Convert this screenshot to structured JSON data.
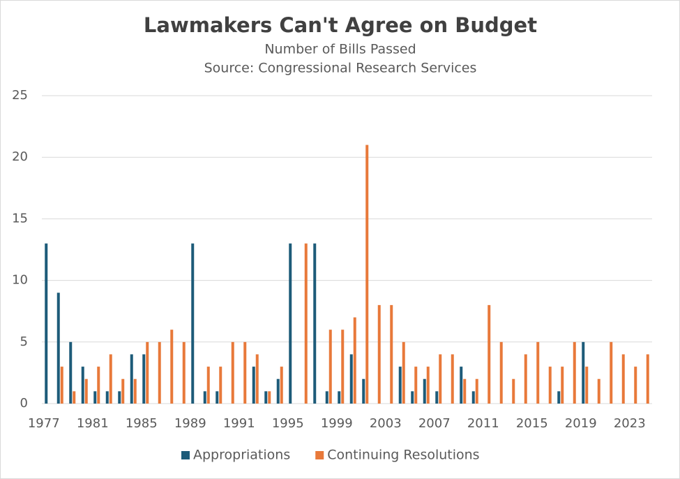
{
  "chart_data": {
    "type": "bar",
    "title": "Lawmakers Can't Agree on Budget",
    "subtitle": "Number of Bills Passed",
    "source": "Source: Congressional Research Services",
    "categories": [
      "1977",
      null,
      null,
      null,
      "1981",
      null,
      null,
      null,
      "1985",
      null,
      null,
      null,
      "1989",
      null,
      null,
      null,
      "1991",
      null,
      null,
      null,
      "1995",
      null,
      null,
      null,
      "1999",
      null,
      null,
      null,
      "2003",
      null,
      null,
      null,
      "2007",
      null,
      null,
      null,
      "2011",
      null,
      null,
      null,
      "2015",
      null,
      null,
      null,
      "2019",
      null,
      null,
      null,
      "2023",
      null
    ],
    "series": [
      {
        "name": "Appropriations",
        "color": "#1d5b79",
        "values": [
          13,
          9,
          5,
          3,
          1,
          1,
          1,
          4,
          4,
          0,
          0,
          0,
          13,
          1,
          1,
          0,
          0,
          3,
          1,
          2,
          13,
          0,
          13,
          1,
          1,
          4,
          2,
          0,
          0,
          3,
          1,
          2,
          1,
          0,
          3,
          1,
          0,
          0,
          0,
          0,
          0,
          0,
          1,
          0,
          5,
          0,
          0,
          0,
          0,
          0
        ]
      },
      {
        "name": "Continuing Resolutions",
        "color": "#e8793a",
        "values": [
          0,
          3,
          1,
          2,
          3,
          4,
          2,
          2,
          5,
          5,
          6,
          5,
          0,
          3,
          3,
          5,
          5,
          4,
          1,
          3,
          0,
          13,
          0,
          6,
          6,
          7,
          21,
          8,
          8,
          5,
          3,
          3,
          4,
          4,
          2,
          2,
          8,
          5,
          2,
          4,
          5,
          3,
          3,
          5,
          3,
          2,
          5,
          4,
          3,
          4
        ]
      }
    ],
    "ylim": [
      0,
      25
    ],
    "yticks": [
      0,
      5,
      10,
      15,
      20,
      25
    ],
    "grid": true,
    "legend": "bottom"
  }
}
